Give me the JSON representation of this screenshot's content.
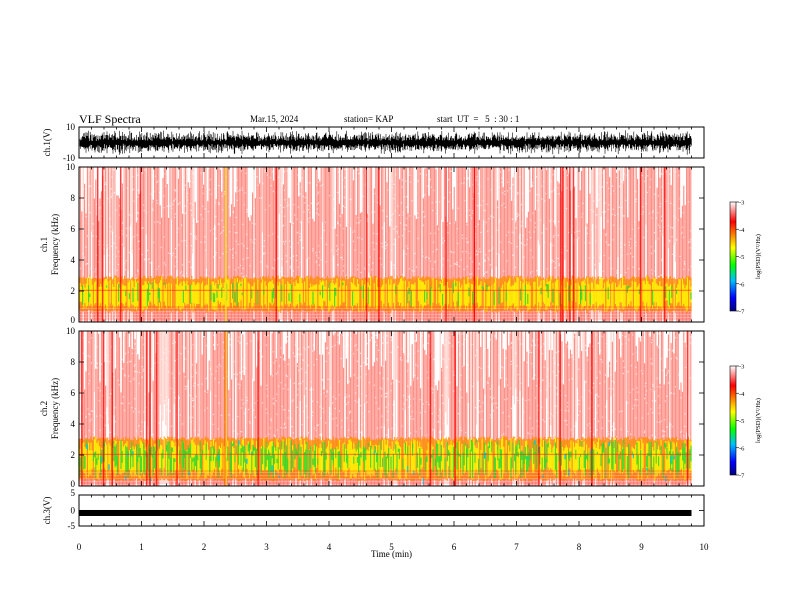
{
  "header": {
    "title": "VLF Spectra",
    "date": "Mar.15, 2024",
    "station": "station= KAP",
    "start": "start  UT  =   5  : 30 : 1"
  },
  "chart_data": [
    {
      "type": "line",
      "panel": "ch1-waveform",
      "ylabel": "ch.1(V)",
      "ylim": [
        -10,
        10
      ],
      "y_ticks": [
        "10",
        "-10"
      ],
      "xlim": [
        0,
        10
      ],
      "trace_extent_min": 9.8,
      "envelope_v": [
        -8,
        8
      ],
      "color": "#000000"
    },
    {
      "type": "heatmap",
      "panel": "ch1-spectrogram",
      "ylabel": "Frequency  (kHz)",
      "channel_label": "ch.1",
      "ylim": [
        0,
        10
      ],
      "y_ticks": [
        "0",
        "2",
        "4",
        "6",
        "8",
        "10"
      ],
      "xlim": [
        0,
        10
      ],
      "data_extent_min": 9.8,
      "dominant_color_band": "red",
      "enhanced_band_khz": [
        0.6,
        3.0
      ],
      "green_band_khz": [
        1.0,
        2.6
      ]
    },
    {
      "type": "heatmap",
      "panel": "ch2-spectrogram",
      "ylabel": "Frequency  (kHz)",
      "channel_label": "ch.2",
      "ylim": [
        0,
        10
      ],
      "y_ticks": [
        "0",
        "2",
        "4",
        "6",
        "8",
        "10"
      ],
      "xlim": [
        0,
        10
      ],
      "data_extent_min": 9.8,
      "dominant_color_band": "red",
      "enhanced_band_khz": [
        0.3,
        3.2
      ],
      "green_band_khz": [
        0.5,
        3.0
      ]
    },
    {
      "type": "line",
      "panel": "ch3-waveform",
      "ylabel": "ch.3(V)",
      "ylim": [
        -5,
        5
      ],
      "y_ticks": [
        "5",
        "0",
        "-5"
      ],
      "xlim": [
        0,
        10
      ],
      "trace_extent_min": 9.8,
      "level_v": -0.8,
      "color": "#000000"
    },
    {
      "type": "colorbar",
      "label": "log(PSD)(V²/Hz)",
      "range": [
        -7,
        -3
      ],
      "ticks": [
        "-3",
        "-4",
        "-5",
        "-6",
        "-7"
      ],
      "colors": [
        "#000080",
        "#0000ff",
        "#00bfff",
        "#00ff00",
        "#ffff00",
        "#ff8000",
        "#ff0000",
        "#ffffff"
      ]
    }
  ],
  "xaxis": {
    "label": "Time  (min)",
    "ticks": [
      "0",
      "1",
      "2",
      "3",
      "4",
      "5",
      "6",
      "7",
      "8",
      "9",
      "10"
    ],
    "range": [
      0,
      10
    ]
  },
  "colorbar_label": "log(PSD)(V²/Hz)"
}
